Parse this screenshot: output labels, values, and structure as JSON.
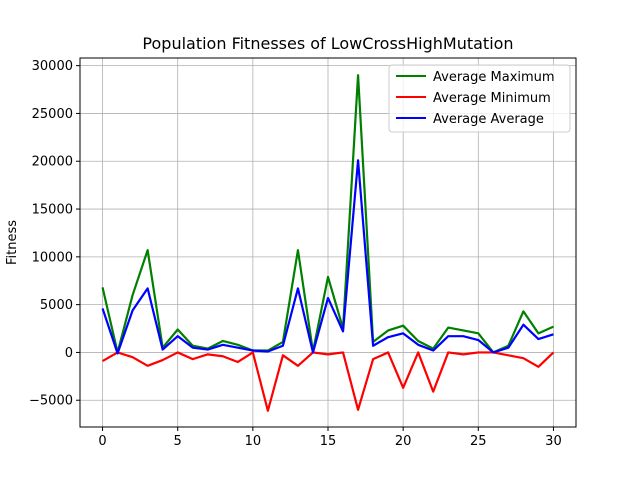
{
  "chart_data": {
    "type": "line",
    "title": "Population Fitnesses of LowCrossHighMutation",
    "xlabel": "",
    "ylabel": "Fitness",
    "xlim": [
      -1.5,
      31.5
    ],
    "ylim": [
      -7800,
      30800
    ],
    "x_ticks": [
      0,
      5,
      10,
      15,
      20,
      25,
      30
    ],
    "y_ticks": [
      -5000,
      0,
      5000,
      10000,
      15000,
      20000,
      25000,
      30000
    ],
    "grid": true,
    "legend_position": "top-right",
    "x": [
      0,
      1,
      2,
      3,
      4,
      5,
      6,
      7,
      8,
      9,
      10,
      11,
      12,
      13,
      14,
      15,
      16,
      17,
      18,
      19,
      20,
      21,
      22,
      23,
      24,
      25,
      26,
      27,
      28,
      29,
      30
    ],
    "series": [
      {
        "name": "Average Maximum",
        "color": "#008000",
        "values": [
          6800,
          0,
          6000,
          10700,
          500,
          2400,
          700,
          400,
          1200,
          800,
          200,
          200,
          1100,
          10700,
          100,
          7900,
          2500,
          29000,
          1100,
          2300,
          2800,
          1200,
          400,
          2600,
          2300,
          2000,
          0,
          700,
          4300,
          2000,
          2700
        ]
      },
      {
        "name": "Average Minimum",
        "color": "#ff0000",
        "values": [
          -900,
          0,
          -500,
          -1400,
          -800,
          0,
          -700,
          -200,
          -400,
          -1000,
          0,
          -6100,
          -300,
          -1400,
          0,
          -200,
          0,
          -6000,
          -700,
          0,
          -3700,
          0,
          -4100,
          0,
          -200,
          0,
          0,
          -300,
          -600,
          -1500,
          0
        ]
      },
      {
        "name": "Average Average",
        "color": "#0000ff",
        "values": [
          4600,
          -100,
          4400,
          6700,
          300,
          1700,
          500,
          300,
          800,
          500,
          200,
          100,
          700,
          6700,
          0,
          5700,
          2200,
          20100,
          700,
          1600,
          2000,
          800,
          200,
          1700,
          1700,
          1300,
          0,
          500,
          2900,
          1400,
          1900
        ]
      }
    ]
  }
}
